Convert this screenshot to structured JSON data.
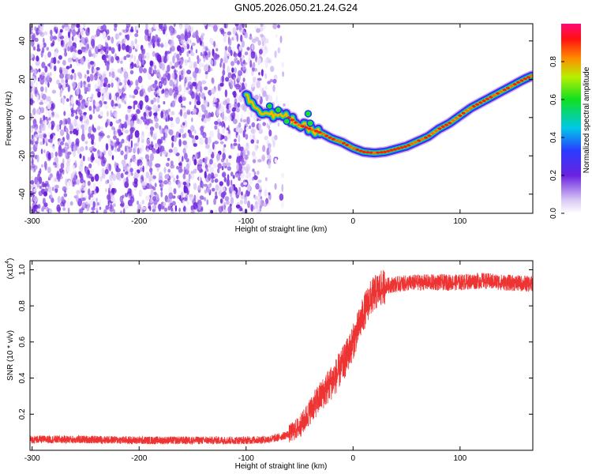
{
  "figure_title": "GN05.2026.050.21.24.G24",
  "chart_data": [
    {
      "type": "heatmap",
      "title": "GN05.2026.050.21.24.G24",
      "xlabel": "Height of straight line (km)",
      "ylabel": "Frequency (Hz)",
      "xlim": [
        -302,
        168
      ],
      "ylim": [
        -50,
        49
      ],
      "xticks": [
        -300,
        -200,
        -100,
        0,
        100
      ],
      "yticks": [
        -40,
        -20,
        0,
        20,
        40
      ],
      "noise_region_end_x": -68,
      "ridge": {
        "x": [
          -100,
          -90,
          -80,
          -70,
          -60,
          -50,
          -40,
          -30,
          -20,
          -10,
          0,
          10,
          20,
          30,
          40,
          50,
          60,
          70,
          80,
          90,
          100,
          110,
          120,
          130,
          140,
          150,
          160,
          168
        ],
        "frequency": [
          11,
          5,
          2,
          1,
          0,
          -4,
          -6,
          -8,
          -11,
          -13,
          -16,
          -18,
          -18.5,
          -18,
          -16.5,
          -15,
          -12.5,
          -10,
          -6,
          -3,
          1,
          5,
          8,
          11,
          14,
          17,
          20,
          22
        ]
      },
      "colorbar": {
        "label": "Normalized spectral amplitude",
        "ticks": [
          0.0,
          0.2,
          0.4,
          0.6,
          0.8
        ],
        "range": [
          0,
          1
        ]
      }
    },
    {
      "type": "line",
      "xlabel": "Height of straight line (km)",
      "ylabel": "SNR (10 * v/v)",
      "multiplier_label": "(x10",
      "multiplier_exponent": "4",
      "xlim": [
        -302,
        168
      ],
      "ylim": [
        0,
        1.05
      ],
      "xticks": [
        -300,
        -200,
        -100,
        0,
        100
      ],
      "yticks": [
        0.2,
        0.4,
        0.6,
        0.8,
        1.0
      ],
      "series": [
        {
          "name": "SNR",
          "color": "#ee3333",
          "x": [
            -302,
            -250,
            -200,
            -150,
            -100,
            -80,
            -70,
            -60,
            -50,
            -45,
            -40,
            -35,
            -30,
            -25,
            -20,
            -15,
            -10,
            -5,
            0,
            5,
            10,
            15,
            20,
            25,
            30,
            40,
            60,
            80,
            100,
            120,
            140,
            168
          ],
          "y": [
            0.06,
            0.06,
            0.055,
            0.055,
            0.055,
            0.06,
            0.07,
            0.09,
            0.13,
            0.17,
            0.22,
            0.26,
            0.3,
            0.34,
            0.38,
            0.42,
            0.47,
            0.53,
            0.6,
            0.68,
            0.76,
            0.83,
            0.87,
            0.89,
            0.91,
            0.92,
            0.93,
            0.93,
            0.93,
            0.94,
            0.93,
            0.92
          ]
        }
      ]
    }
  ]
}
